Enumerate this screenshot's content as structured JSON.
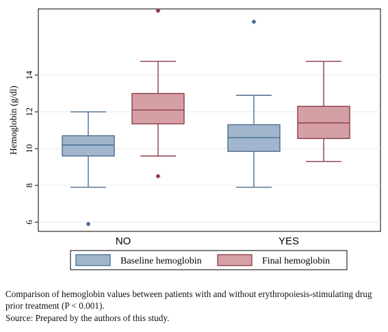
{
  "chart_data": {
    "type": "boxplot",
    "title": "",
    "xlabel": "",
    "ylabel": "Hemoglobin (g/dl)",
    "ylim": [
      5.5,
      17.6
    ],
    "y_ticks": [
      6,
      8,
      10,
      12,
      14
    ],
    "grid": true,
    "legend_position": "bottom",
    "categories": [
      "NO",
      "YES"
    ],
    "series": [
      {
        "name": "Baseline hemoglobin",
        "color": "#4a6c90",
        "fill": "#a1b6cc",
        "boxes": [
          {
            "category": "NO",
            "whisker_low": 7.9,
            "q1": 9.6,
            "median": 10.2,
            "q3": 10.7,
            "whisker_high": 12.0,
            "outliers": [
              5.9
            ]
          },
          {
            "category": "YES",
            "whisker_low": 7.9,
            "q1": 9.85,
            "median": 10.6,
            "q3": 11.3,
            "whisker_high": 12.9,
            "outliers": [
              16.9
            ]
          }
        ]
      },
      {
        "name": "Final hemoglobin",
        "color": "#8a3b46",
        "fill": "#d4a0a5",
        "boxes": [
          {
            "category": "NO",
            "whisker_low": 9.6,
            "q1": 11.35,
            "median": 12.1,
            "q3": 13.0,
            "whisker_high": 14.75,
            "outliers": [
              8.5,
              17.5
            ]
          },
          {
            "category": "YES",
            "whisker_low": 9.3,
            "q1": 10.55,
            "median": 11.4,
            "q3": 12.3,
            "whisker_high": 14.75,
            "outliers": []
          }
        ]
      }
    ]
  },
  "caption": {
    "main": "Comparison of hemoglobin values between patients with and without erythropoiesis-stimulating drug prior treatment (P < 0.001).",
    "source": "Source: Prepared by the authors of this study."
  }
}
